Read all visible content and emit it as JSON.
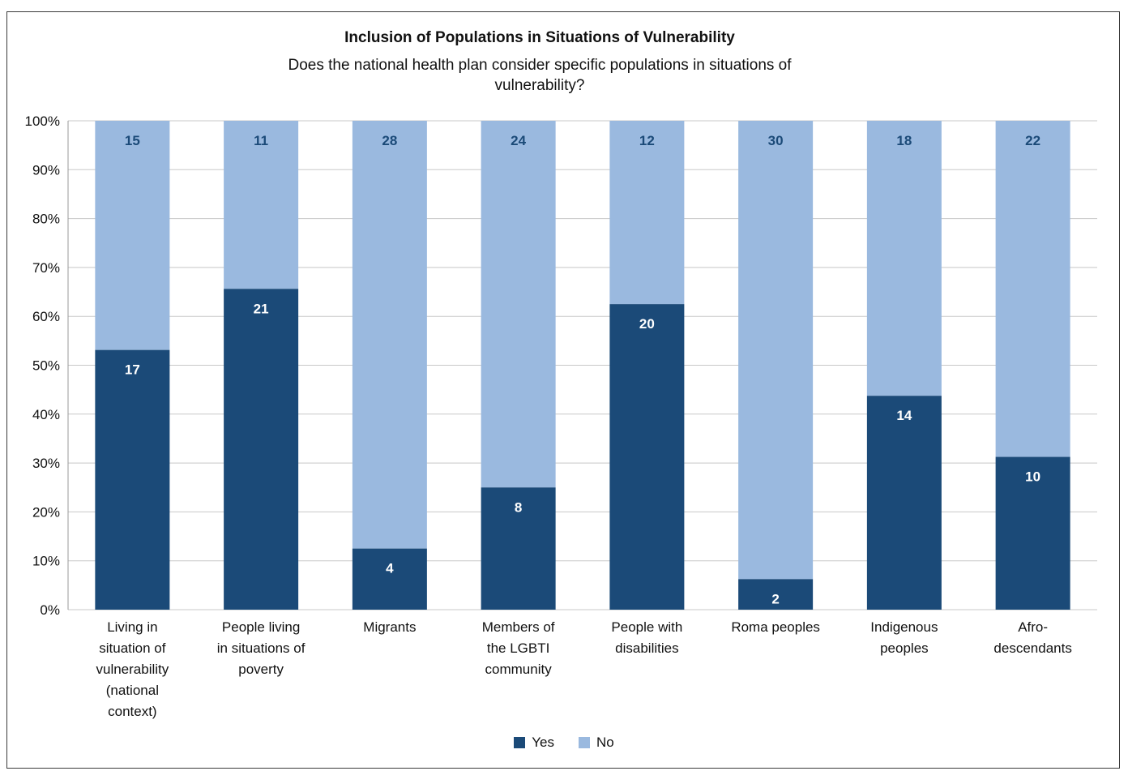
{
  "chart_data": {
    "type": "bar",
    "stacked": "percent",
    "title": "Inclusion of Populations in Situations of Vulnerability",
    "subtitle": "Does the national health plan consider specific populations in situations of vulnerability?",
    "xlabel": "",
    "ylabel": "",
    "ylim": [
      0,
      100
    ],
    "yticks": [
      "0%",
      "10%",
      "20%",
      "30%",
      "40%",
      "50%",
      "60%",
      "70%",
      "80%",
      "90%",
      "100%"
    ],
    "grid": true,
    "legend_position": "bottom",
    "categories": [
      [
        "Living in",
        "situation of",
        "vulnerability",
        "(national",
        "context)"
      ],
      [
        "People living",
        "in situations of",
        "poverty"
      ],
      [
        "Migrants"
      ],
      [
        "Members of",
        "the LGBTI",
        "community"
      ],
      [
        "People with",
        "disabilities"
      ],
      [
        "Roma peoples"
      ],
      [
        "Indigenous",
        "peoples"
      ],
      [
        "Afro-",
        "descendants"
      ]
    ],
    "series": [
      {
        "name": "Yes",
        "color": "#1b4a78",
        "label_color": "#ffffff",
        "values": [
          17,
          21,
          4,
          8,
          20,
          2,
          14,
          10
        ]
      },
      {
        "name": "No",
        "color": "#9ab9df",
        "label_color": "#1b4a78",
        "values": [
          15,
          11,
          28,
          24,
          12,
          30,
          18,
          22
        ]
      }
    ]
  }
}
